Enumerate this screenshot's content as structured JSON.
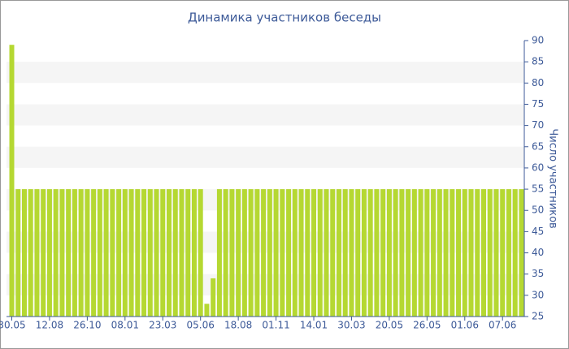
{
  "chart_data": {
    "type": "bar",
    "title": "Динамика участников беседы",
    "y_label": "Число участников",
    "categories": [
      "30.05",
      null,
      null,
      null,
      null,
      null,
      "12.08",
      null,
      null,
      null,
      null,
      null,
      "26.10",
      null,
      null,
      null,
      null,
      null,
      "08.01",
      null,
      null,
      null,
      null,
      null,
      "23.03",
      null,
      null,
      null,
      null,
      null,
      "05.06",
      null,
      null,
      null,
      null,
      null,
      "18.08",
      null,
      null,
      null,
      null,
      null,
      "01.11",
      null,
      null,
      null,
      null,
      null,
      "14.01",
      null,
      null,
      null,
      null,
      null,
      "30.03",
      null,
      null,
      null,
      null,
      null,
      "20.05",
      null,
      null,
      null,
      null,
      null,
      "26.05",
      null,
      null,
      null,
      null,
      null,
      "01.06",
      null,
      null,
      null,
      null,
      null,
      "07.06",
      null,
      null,
      null
    ],
    "values": [
      89,
      55,
      55,
      55,
      55,
      55,
      55,
      55,
      55,
      55,
      55,
      55,
      55,
      55,
      55,
      55,
      55,
      55,
      55,
      55,
      55,
      55,
      55,
      55,
      55,
      55,
      55,
      55,
      55,
      55,
      55,
      28,
      34,
      55,
      55,
      55,
      55,
      55,
      55,
      55,
      55,
      55,
      55,
      55,
      55,
      55,
      55,
      55,
      55,
      55,
      55,
      55,
      55,
      55,
      55,
      55,
      55,
      55,
      55,
      55,
      55,
      55,
      55,
      55,
      55,
      55,
      55,
      55,
      55,
      55,
      55,
      55,
      55,
      55,
      55,
      55,
      55,
      55,
      55,
      55,
      55,
      55
    ],
    "color": "#b5d832",
    "ylim": [
      25,
      90
    ],
    "yticks": [
      25,
      30,
      35,
      40,
      45,
      50,
      55,
      60,
      65,
      70,
      75,
      80,
      85,
      90
    ],
    "grid_bands": true,
    "y_axis_side": "right"
  }
}
